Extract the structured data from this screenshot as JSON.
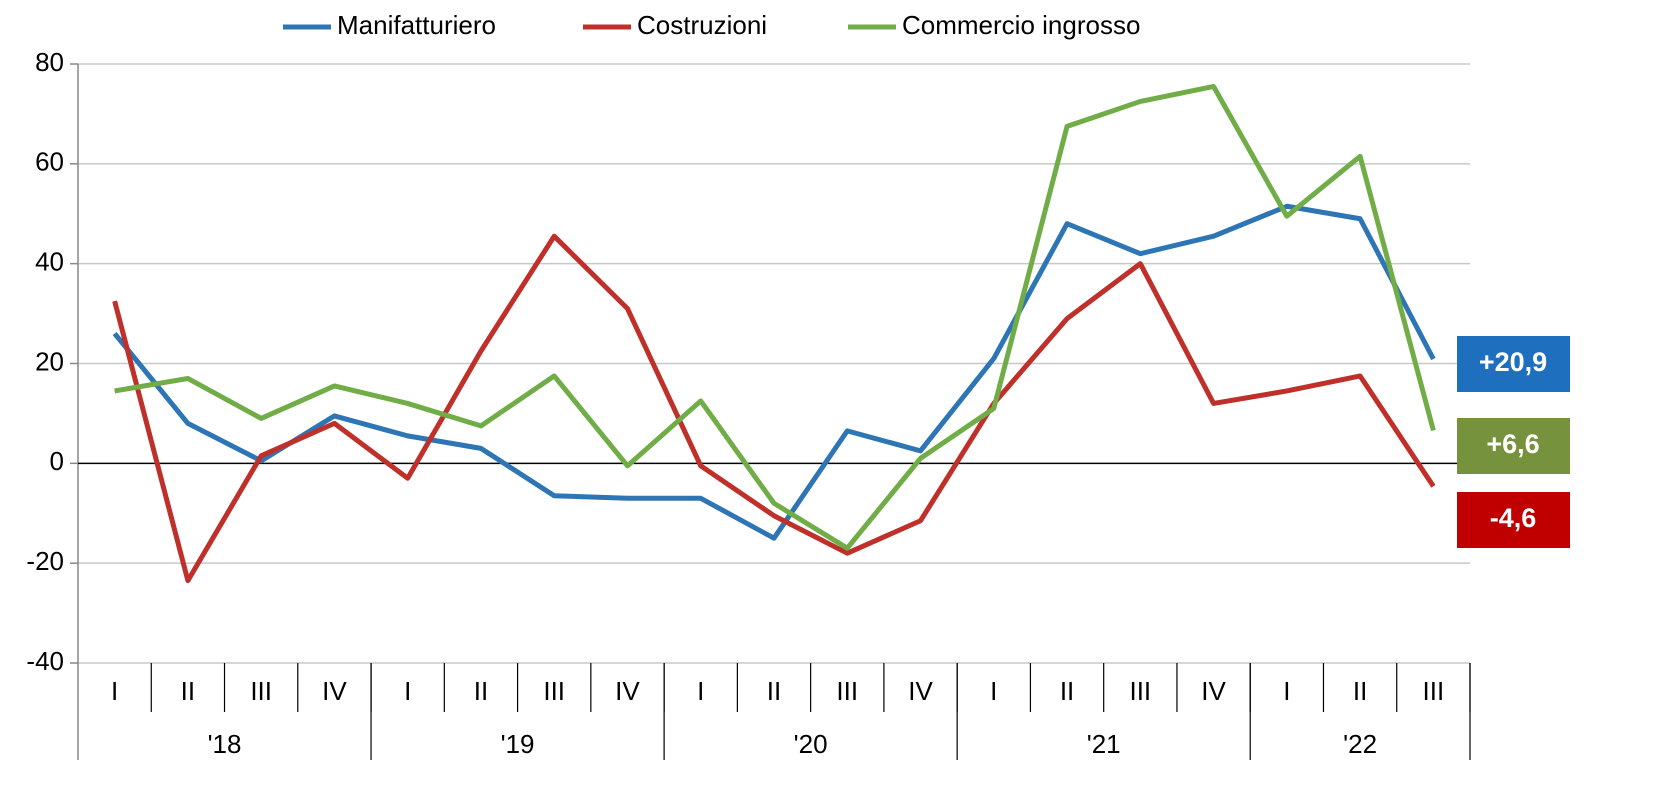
{
  "chart_data": {
    "type": "line",
    "categories": [
      "I",
      "II",
      "III",
      "IV",
      "I",
      "II",
      "III",
      "IV",
      "I",
      "II",
      "III",
      "IV",
      "I",
      "II",
      "III",
      "IV",
      "I",
      "II",
      "III"
    ],
    "category_groups": [
      {
        "label": "'18",
        "count": 4
      },
      {
        "label": "'19",
        "count": 4
      },
      {
        "label": "'20",
        "count": 4
      },
      {
        "label": "'21",
        "count": 4
      },
      {
        "label": "'22",
        "count": 3
      }
    ],
    "series": [
      {
        "name": "Manifatturiero",
        "color": "#2e75b6",
        "label_color": "#1f6fbf",
        "values": [
          26,
          8,
          0.5,
          9.5,
          5.5,
          3,
          -6.5,
          -7,
          -7,
          -15,
          6.5,
          2.5,
          21,
          48,
          42,
          45.5,
          51.5,
          49,
          20.9
        ],
        "value_labels": [
          null,
          null,
          null,
          null,
          null,
          null,
          null,
          null,
          null,
          null,
          null,
          null,
          null,
          null,
          null,
          null,
          null,
          null,
          "+20,9"
        ]
      },
      {
        "name": "Costruzioni",
        "color": "#c0302a",
        "label_color": "#c00000",
        "values": [
          32.5,
          -23.5,
          1.5,
          8,
          -3,
          22.5,
          45.5,
          31,
          -0.5,
          -10.5,
          -18,
          -11.5,
          12,
          29,
          40,
          12,
          14.5,
          17.5,
          -4.6
        ],
        "value_labels": [
          null,
          null,
          null,
          null,
          null,
          null,
          null,
          null,
          null,
          null,
          null,
          null,
          null,
          null,
          null,
          null,
          null,
          null,
          "-4,6"
        ]
      },
      {
        "name": "Commercio ingrosso",
        "color": "#70ad47",
        "label_color": "#76923c",
        "values": [
          14.5,
          17,
          9,
          15.5,
          12,
          7.5,
          17.5,
          -0.5,
          12.5,
          -8,
          -17,
          1,
          11,
          67.5,
          72.5,
          75.5,
          49.5,
          61.5,
          6.6
        ],
        "value_labels": [
          null,
          null,
          null,
          null,
          null,
          null,
          null,
          null,
          null,
          null,
          null,
          null,
          null,
          null,
          null,
          null,
          null,
          null,
          "+6,6"
        ]
      }
    ],
    "ylim": [
      -40,
      80
    ],
    "yticks": [
      -40,
      -20,
      0,
      20,
      40,
      60,
      80
    ],
    "grid": true,
    "legend": "top"
  }
}
